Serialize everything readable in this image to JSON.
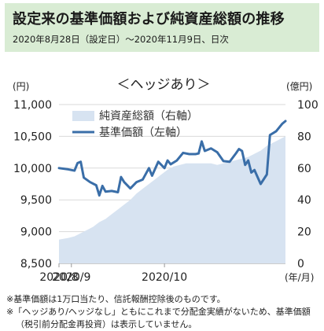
{
  "header": {
    "title": "設定来の基準価額および純資産総額の推移",
    "subtitle": "2020年8月28日（設定日）～2020年11月9日、日次"
  },
  "chart_data": {
    "type": "line",
    "title": "＜ヘッジあり＞",
    "left_axis": {
      "unit": "(円)",
      "ylim": [
        8500,
        11000
      ],
      "ticks": [
        "8,500",
        "9,000",
        "9,500",
        "10,000",
        "10,500",
        "11,000"
      ],
      "tick_values": [
        8500,
        9000,
        9500,
        10000,
        10500,
        11000
      ]
    },
    "right_axis": {
      "unit": "(億円)",
      "ylim": [
        0,
        100
      ],
      "ticks": [
        "0",
        "20",
        "40",
        "60",
        "80",
        "100"
      ],
      "tick_values": [
        0,
        20,
        40,
        60,
        80,
        100
      ]
    },
    "x_axis": {
      "unit": "(年/月)",
      "ticks": [
        "2020/8",
        "2020/9",
        "2020/10"
      ],
      "tick_days": [
        0,
        4,
        34
      ]
    },
    "legend": [
      {
        "name": "純資産総額（右軸）",
        "color": "#d7e3f1"
      },
      {
        "name": "基準価額（左軸）",
        "color": "#3a6ea8"
      }
    ],
    "series": [
      {
        "name": "純資産総額（右軸）",
        "axis": "right",
        "kind": "area",
        "color": "#d7e3f1",
        "points": [
          [
            0,
            15
          ],
          [
            3,
            16
          ],
          [
            5,
            17
          ],
          [
            7,
            19
          ],
          [
            9,
            21
          ],
          [
            11,
            23
          ],
          [
            13,
            26
          ],
          [
            15,
            28
          ],
          [
            17,
            31
          ],
          [
            19,
            34
          ],
          [
            21,
            37
          ],
          [
            23,
            40
          ],
          [
            25,
            44
          ],
          [
            27,
            47
          ],
          [
            29,
            50
          ],
          [
            31,
            53
          ],
          [
            33,
            56
          ],
          [
            35,
            59
          ],
          [
            37,
            61
          ],
          [
            39,
            62
          ],
          [
            41,
            63
          ],
          [
            43,
            63
          ],
          [
            45,
            63
          ],
          [
            47,
            63
          ],
          [
            49,
            63
          ],
          [
            51,
            62
          ],
          [
            53,
            63
          ],
          [
            55,
            64
          ],
          [
            57,
            65
          ],
          [
            59,
            66
          ],
          [
            61,
            67
          ],
          [
            63,
            69
          ],
          [
            65,
            71
          ],
          [
            67,
            74
          ],
          [
            69,
            76
          ],
          [
            71,
            78
          ],
          [
            73,
            80
          ]
        ]
      },
      {
        "name": "基準価額（左軸）",
        "axis": "left",
        "kind": "line",
        "color": "#3a6ea8",
        "points": [
          [
            0,
            10000
          ],
          [
            3,
            9980
          ],
          [
            5,
            9960
          ],
          [
            6,
            10080
          ],
          [
            7,
            10100
          ],
          [
            8,
            9850
          ],
          [
            10,
            9780
          ],
          [
            12,
            9730
          ],
          [
            13,
            9570
          ],
          [
            14,
            9720
          ],
          [
            15,
            9630
          ],
          [
            17,
            9640
          ],
          [
            19,
            9620
          ],
          [
            20,
            9860
          ],
          [
            21,
            9780
          ],
          [
            23,
            9680
          ],
          [
            25,
            9780
          ],
          [
            27,
            9820
          ],
          [
            29,
            10000
          ],
          [
            30,
            9880
          ],
          [
            32,
            10100
          ],
          [
            34,
            10000
          ],
          [
            35,
            10120
          ],
          [
            36,
            10060
          ],
          [
            38,
            10120
          ],
          [
            40,
            10240
          ],
          [
            42,
            10220
          ],
          [
            44,
            10220
          ],
          [
            45,
            10230
          ],
          [
            46,
            10420
          ],
          [
            47,
            10270
          ],
          [
            49,
            10310
          ],
          [
            51,
            10250
          ],
          [
            53,
            10110
          ],
          [
            55,
            10100
          ],
          [
            57,
            10230
          ],
          [
            58,
            10300
          ],
          [
            59,
            10270
          ],
          [
            60,
            10050
          ],
          [
            61,
            10120
          ],
          [
            62,
            9930
          ],
          [
            63,
            9970
          ],
          [
            65,
            9750
          ],
          [
            67,
            9900
          ],
          [
            68,
            10520
          ],
          [
            70,
            10580
          ],
          [
            72,
            10700
          ],
          [
            73,
            10740
          ]
        ]
      }
    ]
  },
  "notes": {
    "line1": "※基準価額は1万口当たり、信託報酬控除後のものです。",
    "line2": "※「ヘッジあり/ヘッジなし」ともにこれまで分配金実績がないため、基準価額",
    "line3": "（税引前分配金再投資）は表示していません。"
  }
}
